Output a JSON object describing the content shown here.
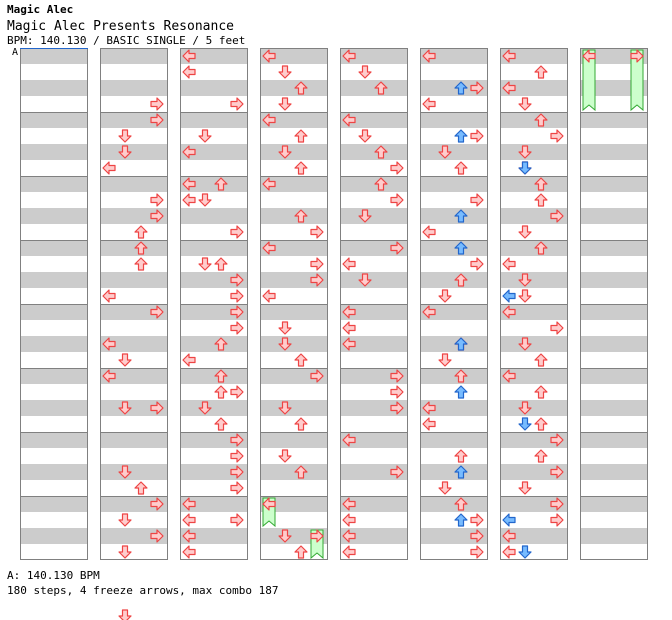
{
  "header": {
    "artist": "Magic Alec",
    "title": "Magic Alec Presents Resonance",
    "meta": "BPM: 140.130 / BASIC SINGLE / 5 feet"
  },
  "bpm_marker": "A",
  "footer": {
    "bpm_line": "A: 140.130 BPM",
    "stats_line": "180 steps, 4 freeze arrows, max combo 187"
  },
  "colors": {
    "band_gray": "#cccccc",
    "border": "#808080",
    "arrow_red_fill": "#ffcccc",
    "arrow_red_stroke": "#ee4444",
    "arrow_blue_fill": "#77bbff",
    "arrow_blue_stroke": "#2266cc",
    "freeze_fill": "#ccffcc",
    "freeze_stroke": "#33aa33"
  },
  "chart_data": {
    "type": "step-chart",
    "columns": 8,
    "measures_per_column": 8,
    "rows_per_measure": 4,
    "lanes": [
      "left",
      "down",
      "up",
      "right"
    ],
    "arrows": [
      [
        1,
        0,
        3,
        "r"
      ],
      [
        1,
        0,
        4,
        "r"
      ],
      [
        1,
        0,
        7,
        "l"
      ],
      [
        1,
        1,
        1,
        "d"
      ],
      [
        1,
        1,
        2,
        "d"
      ],
      [
        1,
        1,
        7,
        "u"
      ],
      [
        1,
        2,
        1,
        "r"
      ],
      [
        1,
        2,
        2,
        "r"
      ],
      [
        1,
        2,
        7,
        "l"
      ],
      [
        1,
        3,
        0,
        "u"
      ],
      [
        1,
        3,
        1,
        "u"
      ],
      [
        1,
        3,
        7,
        "d"
      ],
      [
        1,
        4,
        0,
        "r"
      ],
      [
        1,
        4,
        2,
        "l"
      ],
      [
        1,
        4,
        6,
        "d"
      ],
      [
        1,
        5,
        0,
        "l"
      ],
      [
        1,
        5,
        2,
        "r"
      ],
      [
        1,
        5,
        6,
        "d"
      ],
      [
        1,
        6,
        3,
        "u"
      ],
      [
        1,
        6,
        7,
        "d"
      ],
      [
        1,
        7,
        0,
        "r"
      ],
      [
        1,
        7,
        1,
        "d"
      ],
      [
        1,
        7,
        2,
        "r"
      ],
      [
        1,
        7,
        7,
        "d"
      ],
      [
        2,
        0,
        0,
        "l"
      ],
      [
        2,
        0,
        1,
        "l"
      ],
      [
        2,
        0,
        3,
        "r"
      ],
      [
        2,
        0,
        6,
        "l"
      ],
      [
        2,
        1,
        1,
        "d"
      ],
      [
        2,
        1,
        4,
        "u"
      ],
      [
        2,
        1,
        5,
        "d"
      ],
      [
        2,
        2,
        0,
        "l"
      ],
      [
        2,
        2,
        1,
        "l"
      ],
      [
        2,
        2,
        3,
        "r"
      ],
      [
        2,
        2,
        5,
        "d"
      ],
      [
        2,
        2,
        6,
        "r"
      ],
      [
        2,
        3,
        1,
        "u"
      ],
      [
        2,
        3,
        3,
        "r"
      ],
      [
        2,
        3,
        6,
        "u"
      ],
      [
        2,
        4,
        0,
        "r"
      ],
      [
        2,
        4,
        1,
        "r"
      ],
      [
        2,
        4,
        3,
        "l"
      ],
      [
        2,
        4,
        5,
        "r"
      ],
      [
        2,
        5,
        0,
        "u"
      ],
      [
        2,
        5,
        1,
        "u"
      ],
      [
        2,
        5,
        2,
        "d"
      ],
      [
        2,
        5,
        3,
        "u"
      ],
      [
        2,
        6,
        0,
        "r"
      ],
      [
        2,
        6,
        1,
        "r"
      ],
      [
        2,
        6,
        2,
        "r"
      ],
      [
        2,
        6,
        3,
        "r"
      ],
      [
        2,
        6,
        5,
        "r"
      ],
      [
        2,
        7,
        0,
        "l"
      ],
      [
        2,
        7,
        1,
        "l"
      ],
      [
        2,
        7,
        2,
        "l"
      ],
      [
        2,
        7,
        3,
        "l"
      ],
      [
        3,
        0,
        0,
        "l"
      ],
      [
        3,
        0,
        1,
        "d"
      ],
      [
        3,
        0,
        2,
        "u"
      ],
      [
        3,
        0,
        3,
        "d"
      ],
      [
        3,
        1,
        0,
        "l"
      ],
      [
        3,
        1,
        1,
        "u"
      ],
      [
        3,
        1,
        2,
        "d"
      ],
      [
        3,
        1,
        3,
        "u"
      ],
      [
        3,
        2,
        0,
        "l"
      ],
      [
        3,
        2,
        2,
        "u"
      ],
      [
        3,
        2,
        3,
        "r"
      ],
      [
        3,
        3,
        0,
        "l"
      ],
      [
        3,
        3,
        1,
        "r"
      ],
      [
        3,
        3,
        2,
        "r"
      ],
      [
        3,
        3,
        3,
        "l"
      ],
      [
        3,
        4,
        1,
        "d"
      ],
      [
        3,
        4,
        2,
        "d"
      ],
      [
        3,
        4,
        3,
        "u"
      ],
      [
        3,
        5,
        0,
        "r"
      ],
      [
        3,
        5,
        2,
        "d"
      ],
      [
        3,
        5,
        3,
        "u"
      ],
      [
        3,
        6,
        1,
        "d"
      ],
      [
        3,
        6,
        2,
        "u"
      ],
      [
        3,
        7,
        0,
        "l"
      ],
      [
        3,
        7,
        2,
        "d"
      ],
      [
        3,
        7,
        3,
        "u"
      ],
      [
        4,
        0,
        0,
        "l"
      ],
      [
        4,
        0,
        1,
        "d"
      ],
      [
        4,
        0,
        2,
        "u"
      ],
      [
        4,
        1,
        0,
        "l"
      ],
      [
        4,
        1,
        1,
        "d"
      ],
      [
        4,
        1,
        2,
        "u"
      ],
      [
        4,
        1,
        3,
        "r"
      ],
      [
        4,
        2,
        0,
        "u"
      ],
      [
        4,
        2,
        1,
        "r"
      ],
      [
        4,
        2,
        2,
        "d"
      ],
      [
        4,
        3,
        0,
        "r"
      ],
      [
        4,
        3,
        1,
        "l"
      ],
      [
        4,
        3,
        2,
        "d"
      ],
      [
        4,
        4,
        0,
        "l"
      ],
      [
        4,
        4,
        1,
        "l"
      ],
      [
        4,
        4,
        2,
        "l"
      ],
      [
        4,
        5,
        0,
        "r"
      ],
      [
        4,
        5,
        1,
        "r"
      ],
      [
        4,
        5,
        2,
        "r"
      ],
      [
        4,
        6,
        0,
        "l"
      ],
      [
        4,
        6,
        2,
        "r"
      ],
      [
        4,
        7,
        0,
        "l"
      ],
      [
        4,
        7,
        1,
        "l"
      ],
      [
        4,
        7,
        2,
        "l"
      ],
      [
        4,
        7,
        3,
        "l"
      ],
      [
        5,
        0,
        0,
        "l"
      ],
      [
        5,
        0,
        2,
        "r"
      ],
      [
        5,
        0,
        3,
        "l"
      ],
      [
        5,
        1,
        1,
        "r"
      ],
      [
        5,
        1,
        2,
        "d"
      ],
      [
        5,
        1,
        3,
        "u"
      ],
      [
        5,
        2,
        1,
        "r"
      ],
      [
        5,
        2,
        3,
        "l"
      ],
      [
        5,
        3,
        1,
        "r"
      ],
      [
        5,
        3,
        2,
        "u"
      ],
      [
        5,
        3,
        3,
        "d"
      ],
      [
        5,
        4,
        0,
        "l"
      ],
      [
        5,
        4,
        2,
        "u"
      ],
      [
        5,
        4,
        3,
        "d"
      ],
      [
        5,
        5,
        0,
        "u"
      ],
      [
        5,
        5,
        2,
        "l"
      ],
      [
        5,
        5,
        3,
        "l"
      ],
      [
        5,
        6,
        1,
        "u"
      ],
      [
        5,
        6,
        3,
        "d"
      ],
      [
        5,
        7,
        0,
        "u"
      ],
      [
        5,
        7,
        1,
        "r"
      ],
      [
        5,
        7,
        2,
        "r"
      ],
      [
        5,
        7,
        3,
        "r"
      ],
      [
        6,
        0,
        0,
        "l"
      ],
      [
        6,
        0,
        1,
        "u"
      ],
      [
        6,
        0,
        2,
        "l"
      ],
      [
        6,
        0,
        3,
        "d"
      ],
      [
        6,
        1,
        0,
        "u"
      ],
      [
        6,
        1,
        1,
        "r"
      ],
      [
        6,
        1,
        2,
        "d"
      ],
      [
        6,
        1,
        3,
        "d"
      ],
      [
        6,
        2,
        0,
        "u"
      ],
      [
        6,
        2,
        1,
        "u"
      ],
      [
        6,
        2,
        2,
        "r"
      ],
      [
        6,
        2,
        3,
        "d"
      ],
      [
        6,
        3,
        0,
        "u"
      ],
      [
        6,
        3,
        1,
        "l"
      ],
      [
        6,
        3,
        2,
        "d"
      ],
      [
        6,
        3,
        3,
        "d"
      ],
      [
        6,
        4,
        0,
        "l"
      ],
      [
        6,
        4,
        1,
        "r"
      ],
      [
        6,
        4,
        2,
        "d"
      ],
      [
        6,
        4,
        3,
        "u"
      ],
      [
        6,
        5,
        0,
        "l"
      ],
      [
        6,
        5,
        1,
        "u"
      ],
      [
        6,
        5,
        2,
        "d"
      ],
      [
        6,
        5,
        3,
        "u"
      ],
      [
        6,
        6,
        0,
        "r"
      ],
      [
        6,
        6,
        1,
        "u"
      ],
      [
        6,
        6,
        2,
        "r"
      ],
      [
        6,
        6,
        3,
        "d"
      ],
      [
        6,
        7,
        0,
        "r"
      ],
      [
        6,
        7,
        1,
        "r"
      ],
      [
        6,
        7,
        2,
        "l"
      ],
      [
        6,
        7,
        3,
        "l"
      ]
    ],
    "blue_arrows": [
      [
        5,
        0,
        2,
        "u"
      ],
      [
        5,
        1,
        1,
        "u"
      ],
      [
        5,
        2,
        2,
        "u"
      ],
      [
        5,
        3,
        0,
        "u"
      ],
      [
        5,
        4,
        2,
        "u"
      ],
      [
        5,
        5,
        1,
        "u"
      ],
      [
        5,
        6,
        2,
        "u"
      ],
      [
        5,
        7,
        1,
        "u"
      ],
      [
        6,
        1,
        3,
        "d"
      ],
      [
        6,
        3,
        3,
        "l"
      ],
      [
        6,
        5,
        3,
        "d"
      ],
      [
        6,
        7,
        1,
        "l"
      ],
      [
        6,
        7,
        3,
        "d"
      ]
    ],
    "freezes": [
      [
        3,
        7,
        0,
        0,
        2
      ],
      [
        3,
        7,
        3,
        2,
        4
      ],
      [
        7,
        0,
        0,
        0,
        4
      ],
      [
        7,
        0,
        3,
        0,
        4
      ]
    ],
    "total_steps": 180,
    "freeze_arrows": 4,
    "max_combo": 187,
    "bpm": 140.13
  }
}
